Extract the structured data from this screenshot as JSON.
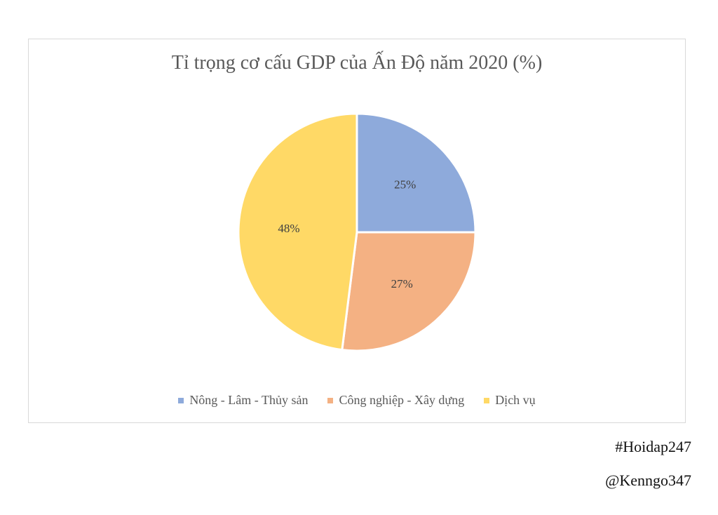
{
  "chart_data": {
    "type": "pie",
    "title": "Tỉ trọng cơ cấu GDP của Ấn Độ năm 2020 (%)",
    "slices": [
      {
        "name": "Nông - Lâm - Thủy sản",
        "value": 25,
        "label": "25%",
        "color": "#8eaadb"
      },
      {
        "name": "Công nghiệp - Xây dựng",
        "value": 27,
        "label": "27%",
        "color": "#f4b183"
      },
      {
        "name": "Dịch vụ",
        "value": 48,
        "label": "48%",
        "color": "#ffd966"
      }
    ],
    "legend_position": "bottom",
    "start_angle": "12 o'clock, clockwise"
  },
  "watermarks": {
    "hashtag": "#Hoidap247",
    "author": "@Kenngo347"
  }
}
